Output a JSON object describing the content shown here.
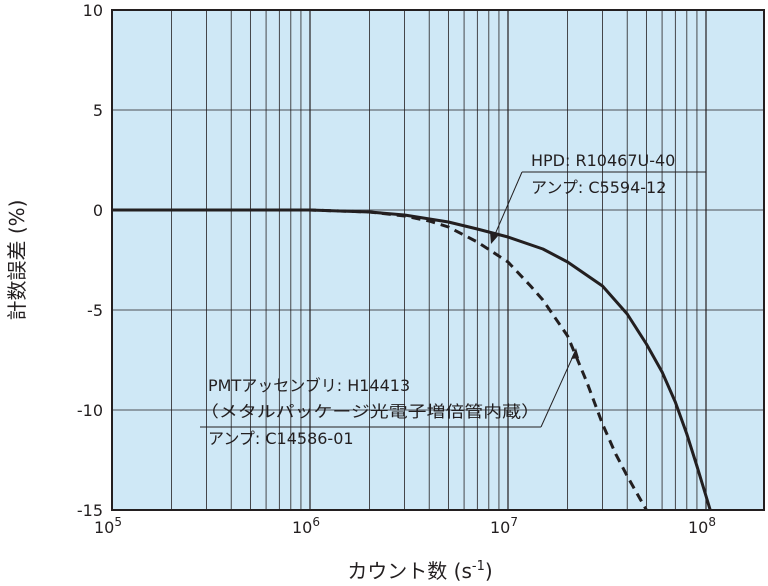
{
  "chart_data": {
    "type": "line",
    "xlabel": "カウント数 (s",
    "xlabel_sup": "-1",
    "xlabel_close": ")",
    "ylabel": "計数誤差 (%)",
    "x_scale": "log",
    "xlim": [
      100000,
      200000000
    ],
    "ylim": [
      -15,
      10
    ],
    "grid": true,
    "background": "#cfe8f6",
    "x_ticks": [
      {
        "base": "10",
        "exp": "5",
        "value": 100000
      },
      {
        "base": "10",
        "exp": "6",
        "value": 1000000
      },
      {
        "base": "10",
        "exp": "7",
        "value": 10000000
      },
      {
        "base": "10",
        "exp": "8",
        "value": 100000000
      }
    ],
    "y_ticks": [
      {
        "label": "10",
        "value": 10
      },
      {
        "label": "5",
        "value": 5
      },
      {
        "label": "0",
        "value": 0
      },
      {
        "label": "-5",
        "value": -5
      },
      {
        "label": "-10",
        "value": -10
      },
      {
        "label": "-15",
        "value": -15
      }
    ],
    "series": [
      {
        "style": "solid",
        "color": "#231f20",
        "x": [
          100000,
          500000,
          1000000,
          2000000,
          3000000,
          5000000,
          7000000,
          10000000,
          15000000,
          20000000,
          30000000,
          40000000,
          50000000,
          60000000,
          70000000,
          80000000,
          90000000,
          100000000,
          105000000
        ],
        "y": [
          0,
          0,
          0,
          -0.1,
          -0.25,
          -0.6,
          -0.95,
          -1.35,
          -1.95,
          -2.6,
          -3.8,
          -5.2,
          -6.7,
          -8.1,
          -9.6,
          -11.2,
          -12.8,
          -14.3,
          -15
        ]
      },
      {
        "style": "dashed",
        "color": "#231f20",
        "x": [
          100000,
          500000,
          1000000,
          2000000,
          3000000,
          4000000,
          5000000,
          7000000,
          10000000,
          13000000,
          15000000,
          20000000,
          25000000,
          30000000,
          35000000,
          40000000,
          45000000,
          50000000
        ],
        "y": [
          0,
          0,
          0,
          -0.1,
          -0.3,
          -0.55,
          -0.85,
          -1.6,
          -2.6,
          -3.8,
          -4.5,
          -6.3,
          -8.6,
          -10.7,
          -12.2,
          -13.3,
          -14.2,
          -15
        ]
      }
    ],
    "annotations": [
      {
        "lines": [
          "HPD: R10467U-40",
          "アンプ: C5594-12"
        ]
      },
      {
        "lines": [
          "PMTアッセンブリ: H14413",
          "（メタルパッケージ光電子増倍管内蔵）",
          "アンプ: C14586-01"
        ]
      }
    ]
  }
}
